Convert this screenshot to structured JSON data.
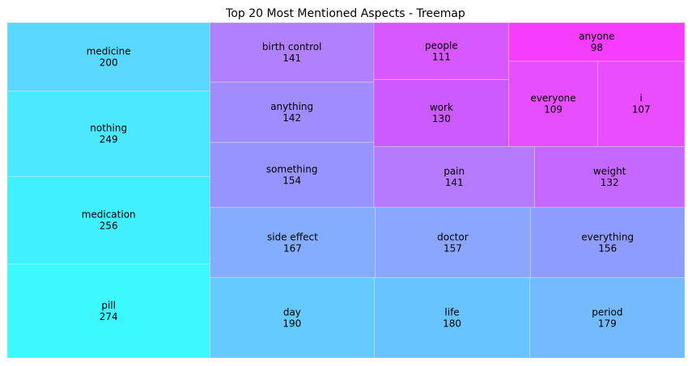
{
  "chart_data": {
    "type": "treemap",
    "title": "Top 20 Most Mentioned Aspects - Treemap",
    "items": [
      {
        "label": "pill",
        "value": 274,
        "color": "#3cf9ff"
      },
      {
        "label": "medication",
        "value": 256,
        "color": "#40f0ff"
      },
      {
        "label": "nothing",
        "value": 249,
        "color": "#4ce8ff"
      },
      {
        "label": "medicine",
        "value": 200,
        "color": "#5ad8ff"
      },
      {
        "label": "day",
        "value": 190,
        "color": "#64caff"
      },
      {
        "label": "life",
        "value": 180,
        "color": "#68c4ff"
      },
      {
        "label": "period",
        "value": 179,
        "color": "#74baff"
      },
      {
        "label": "side effect",
        "value": 167,
        "color": "#84acff"
      },
      {
        "label": "doctor",
        "value": 157,
        "color": "#8aa6ff"
      },
      {
        "label": "everything",
        "value": 156,
        "color": "#8e9cff"
      },
      {
        "label": "something",
        "value": 154,
        "color": "#9894ff"
      },
      {
        "label": "anything",
        "value": 142,
        "color": "#a08cff"
      },
      {
        "label": "birth control",
        "value": 141,
        "color": "#b080ff"
      },
      {
        "label": "pain",
        "value": 141,
        "color": "#b67aff"
      },
      {
        "label": "weight",
        "value": 132,
        "color": "#c468ff"
      },
      {
        "label": "work",
        "value": 130,
        "color": "#cc5aff"
      },
      {
        "label": "people",
        "value": 111,
        "color": "#d858ff"
      },
      {
        "label": "everyone",
        "value": 109,
        "color": "#e64eff"
      },
      {
        "label": "i",
        "value": 107,
        "color": "#ea4cff"
      },
      {
        "label": "anyone",
        "value": 98,
        "color": "#f53cff"
      }
    ]
  }
}
